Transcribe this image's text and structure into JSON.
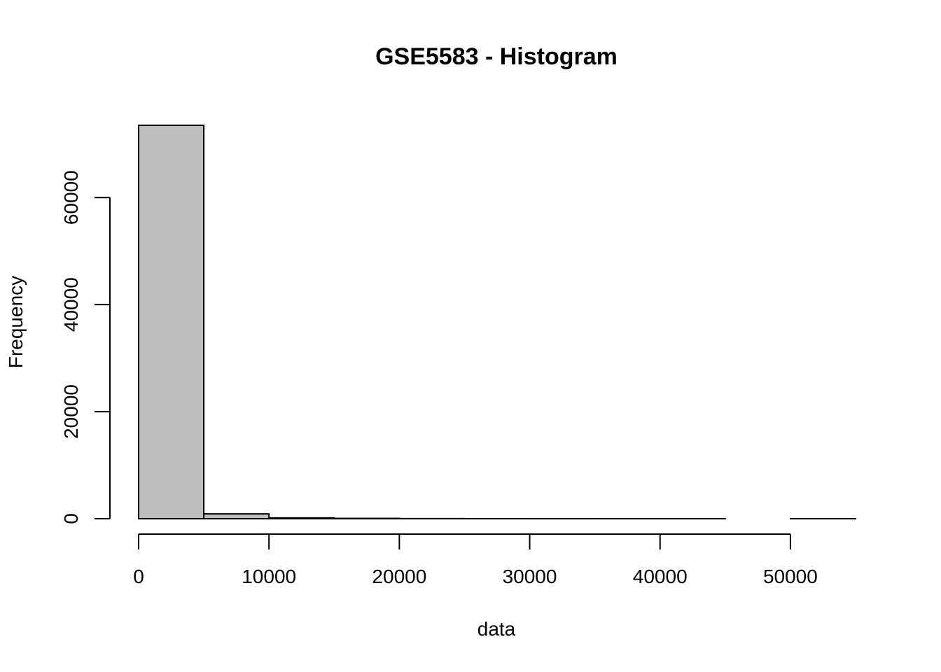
{
  "chart_data": {
    "type": "bar",
    "histogram": true,
    "title": "GSE5583 - Histogram",
    "xlabel": "data",
    "ylabel": "Frequency",
    "bin_edges": [
      0,
      5000,
      10000,
      15000,
      20000,
      25000,
      30000,
      35000,
      40000,
      45000,
      50000,
      55000
    ],
    "values": [
      73500,
      900,
      150,
      60,
      20,
      5,
      2,
      1,
      1,
      0,
      1
    ],
    "xlim": [
      0,
      55000
    ],
    "ylim": [
      0,
      73500
    ],
    "x_ticks": [
      0,
      10000,
      20000,
      30000,
      40000,
      50000
    ],
    "x_tick_labels": [
      "0",
      "10000",
      "20000",
      "30000",
      "40000",
      "50000"
    ],
    "y_ticks": [
      0,
      20000,
      40000,
      60000
    ],
    "y_tick_labels": [
      "0",
      "20000",
      "40000",
      "60000"
    ],
    "grid": false,
    "bar_color": "#bebebe"
  }
}
